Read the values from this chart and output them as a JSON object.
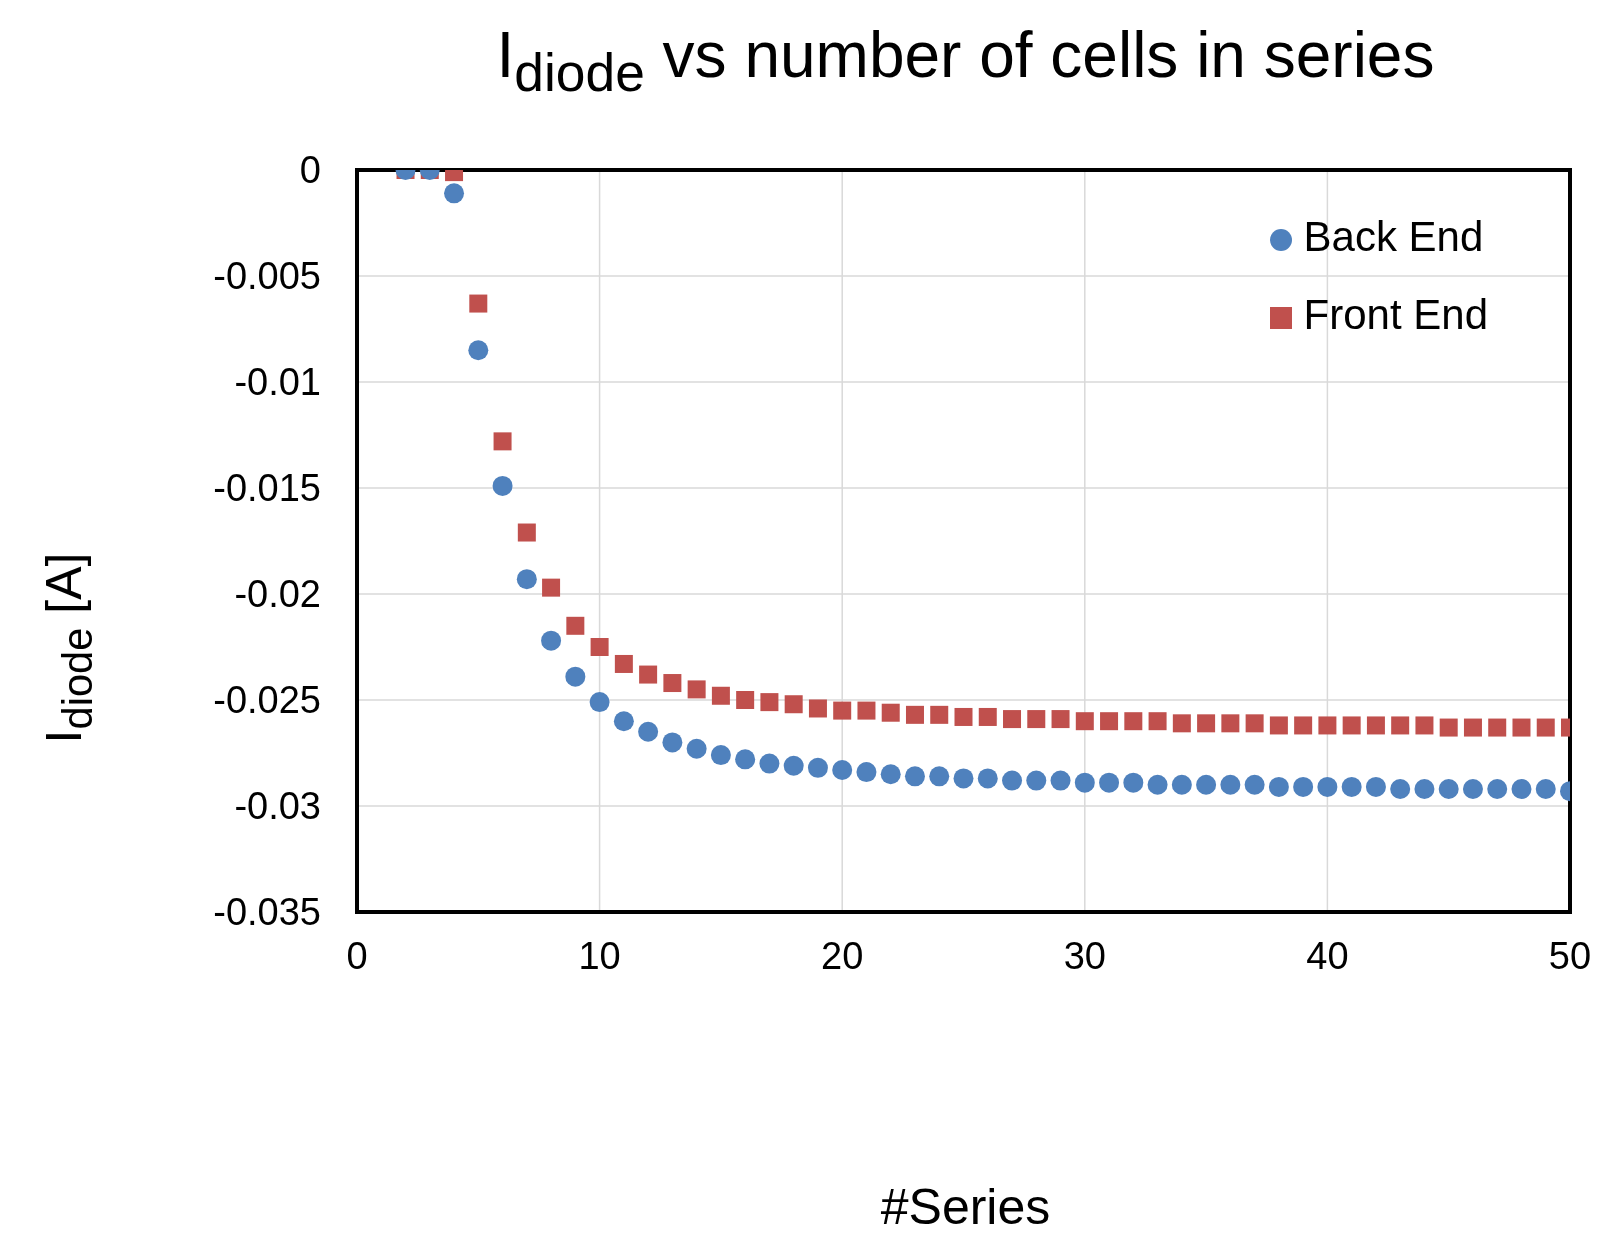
{
  "chart_data": {
    "type": "scatter",
    "title": "I$_{diode}$ vs number of cells in series",
    "xlabel": "#Series",
    "ylabel": "I$_{diode}$ [A]",
    "x": [
      2,
      3,
      4,
      5,
      6,
      7,
      8,
      9,
      10,
      11,
      12,
      13,
      14,
      15,
      16,
      17,
      18,
      19,
      20,
      21,
      22,
      23,
      24,
      25,
      26,
      27,
      28,
      29,
      30,
      31,
      32,
      33,
      34,
      35,
      36,
      37,
      38,
      39,
      40,
      41,
      42,
      43,
      44,
      45,
      46,
      47,
      48,
      49,
      50
    ],
    "series": [
      {
        "name": "Front End",
        "color": "#c0504d",
        "marker": "square",
        "values": [
          0,
          0,
          -0.0001,
          -0.0063,
          -0.0128,
          -0.0171,
          -0.0197,
          -0.0215,
          -0.0225,
          -0.0233,
          -0.0238,
          -0.0242,
          -0.0245,
          -0.0248,
          -0.025,
          -0.0251,
          -0.0252,
          -0.0254,
          -0.0255,
          -0.0255,
          -0.0256,
          -0.0257,
          -0.0257,
          -0.0258,
          -0.0258,
          -0.0259,
          -0.0259,
          -0.0259,
          -0.026,
          -0.026,
          -0.026,
          -0.026,
          -0.0261,
          -0.0261,
          -0.0261,
          -0.0261,
          -0.0262,
          -0.0262,
          -0.0262,
          -0.0262,
          -0.0262,
          -0.0262,
          -0.0262,
          -0.0263,
          -0.0263,
          -0.0263,
          -0.0263,
          -0.0263,
          -0.0263
        ]
      },
      {
        "name": "Back End",
        "color": "#4f81bd",
        "marker": "circle",
        "values": [
          0,
          0,
          -0.0011,
          -0.0085,
          -0.0149,
          -0.0193,
          -0.0222,
          -0.0239,
          -0.0251,
          -0.026,
          -0.0265,
          -0.027,
          -0.0273,
          -0.0276,
          -0.0278,
          -0.028,
          -0.0281,
          -0.0282,
          -0.0283,
          -0.0284,
          -0.0285,
          -0.0286,
          -0.0286,
          -0.0287,
          -0.0287,
          -0.0288,
          -0.0288,
          -0.0288,
          -0.0289,
          -0.0289,
          -0.0289,
          -0.029,
          -0.029,
          -0.029,
          -0.029,
          -0.029,
          -0.0291,
          -0.0291,
          -0.0291,
          -0.0291,
          -0.0291,
          -0.0292,
          -0.0292,
          -0.0292,
          -0.0292,
          -0.0292,
          -0.0292,
          -0.0292,
          -0.0293
        ]
      }
    ],
    "xlim": [
      0,
      50
    ],
    "xticks": [
      0,
      10,
      20,
      30,
      40,
      50
    ],
    "ylim": [
      -0.035,
      0
    ],
    "yticks": [
      0,
      -0.005,
      -0.01,
      -0.015,
      -0.02,
      -0.025,
      -0.03,
      -0.035
    ],
    "grid": true,
    "legend": "top right"
  }
}
